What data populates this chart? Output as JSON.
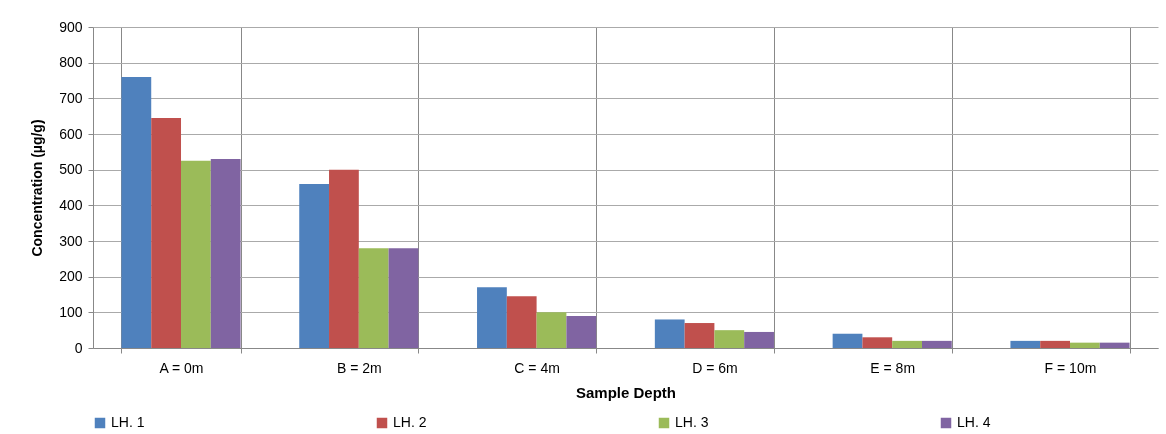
{
  "chart_data": {
    "type": "bar",
    "xlabel": "Sample Depth",
    "ylabel": "Concentration  (µg/g)",
    "categories": [
      "A = 0m",
      "B = 2m",
      "C = 4m",
      "D = 6m",
      "E = 8m",
      "F = 10m"
    ],
    "series": [
      {
        "name": "LH. 1",
        "color": "#4f81bd",
        "values": [
          760,
          460,
          170,
          80,
          40,
          20
        ]
      },
      {
        "name": "LH. 2",
        "color": "#c0504d",
        "values": [
          645,
          500,
          145,
          70,
          30,
          20
        ]
      },
      {
        "name": "LH. 3",
        "color": "#9bbb59",
        "values": [
          525,
          280,
          100,
          50,
          20,
          15
        ]
      },
      {
        "name": "LH. 4",
        "color": "#8064a2",
        "values": [
          530,
          280,
          90,
          45,
          20,
          15
        ]
      }
    ],
    "ylim": [
      0,
      900
    ],
    "yticks": [
      0,
      100,
      200,
      300,
      400,
      500,
      600,
      700,
      800,
      900
    ],
    "grid": true,
    "legend": "bottom"
  }
}
